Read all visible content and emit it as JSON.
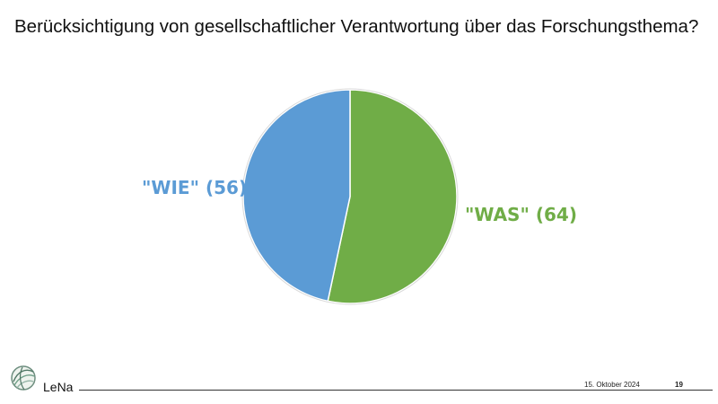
{
  "slide": {
    "title": "Berücksichtigung von gesellschaftlicher Verantwortung über das Forschungsthema?"
  },
  "chart_data": {
    "type": "pie",
    "categories": [
      "\"WIE\" (56)",
      "\"WAS\" (64)"
    ],
    "values": [
      56,
      64
    ],
    "colors": [
      "#5b9bd5",
      "#70ad47"
    ],
    "start": "top, clockwise; \"WAS\" drawn first",
    "legend": "none",
    "title": ""
  },
  "footer": {
    "brand": "LeNa",
    "date": "15. Oktober 2024",
    "page_number": "19"
  }
}
